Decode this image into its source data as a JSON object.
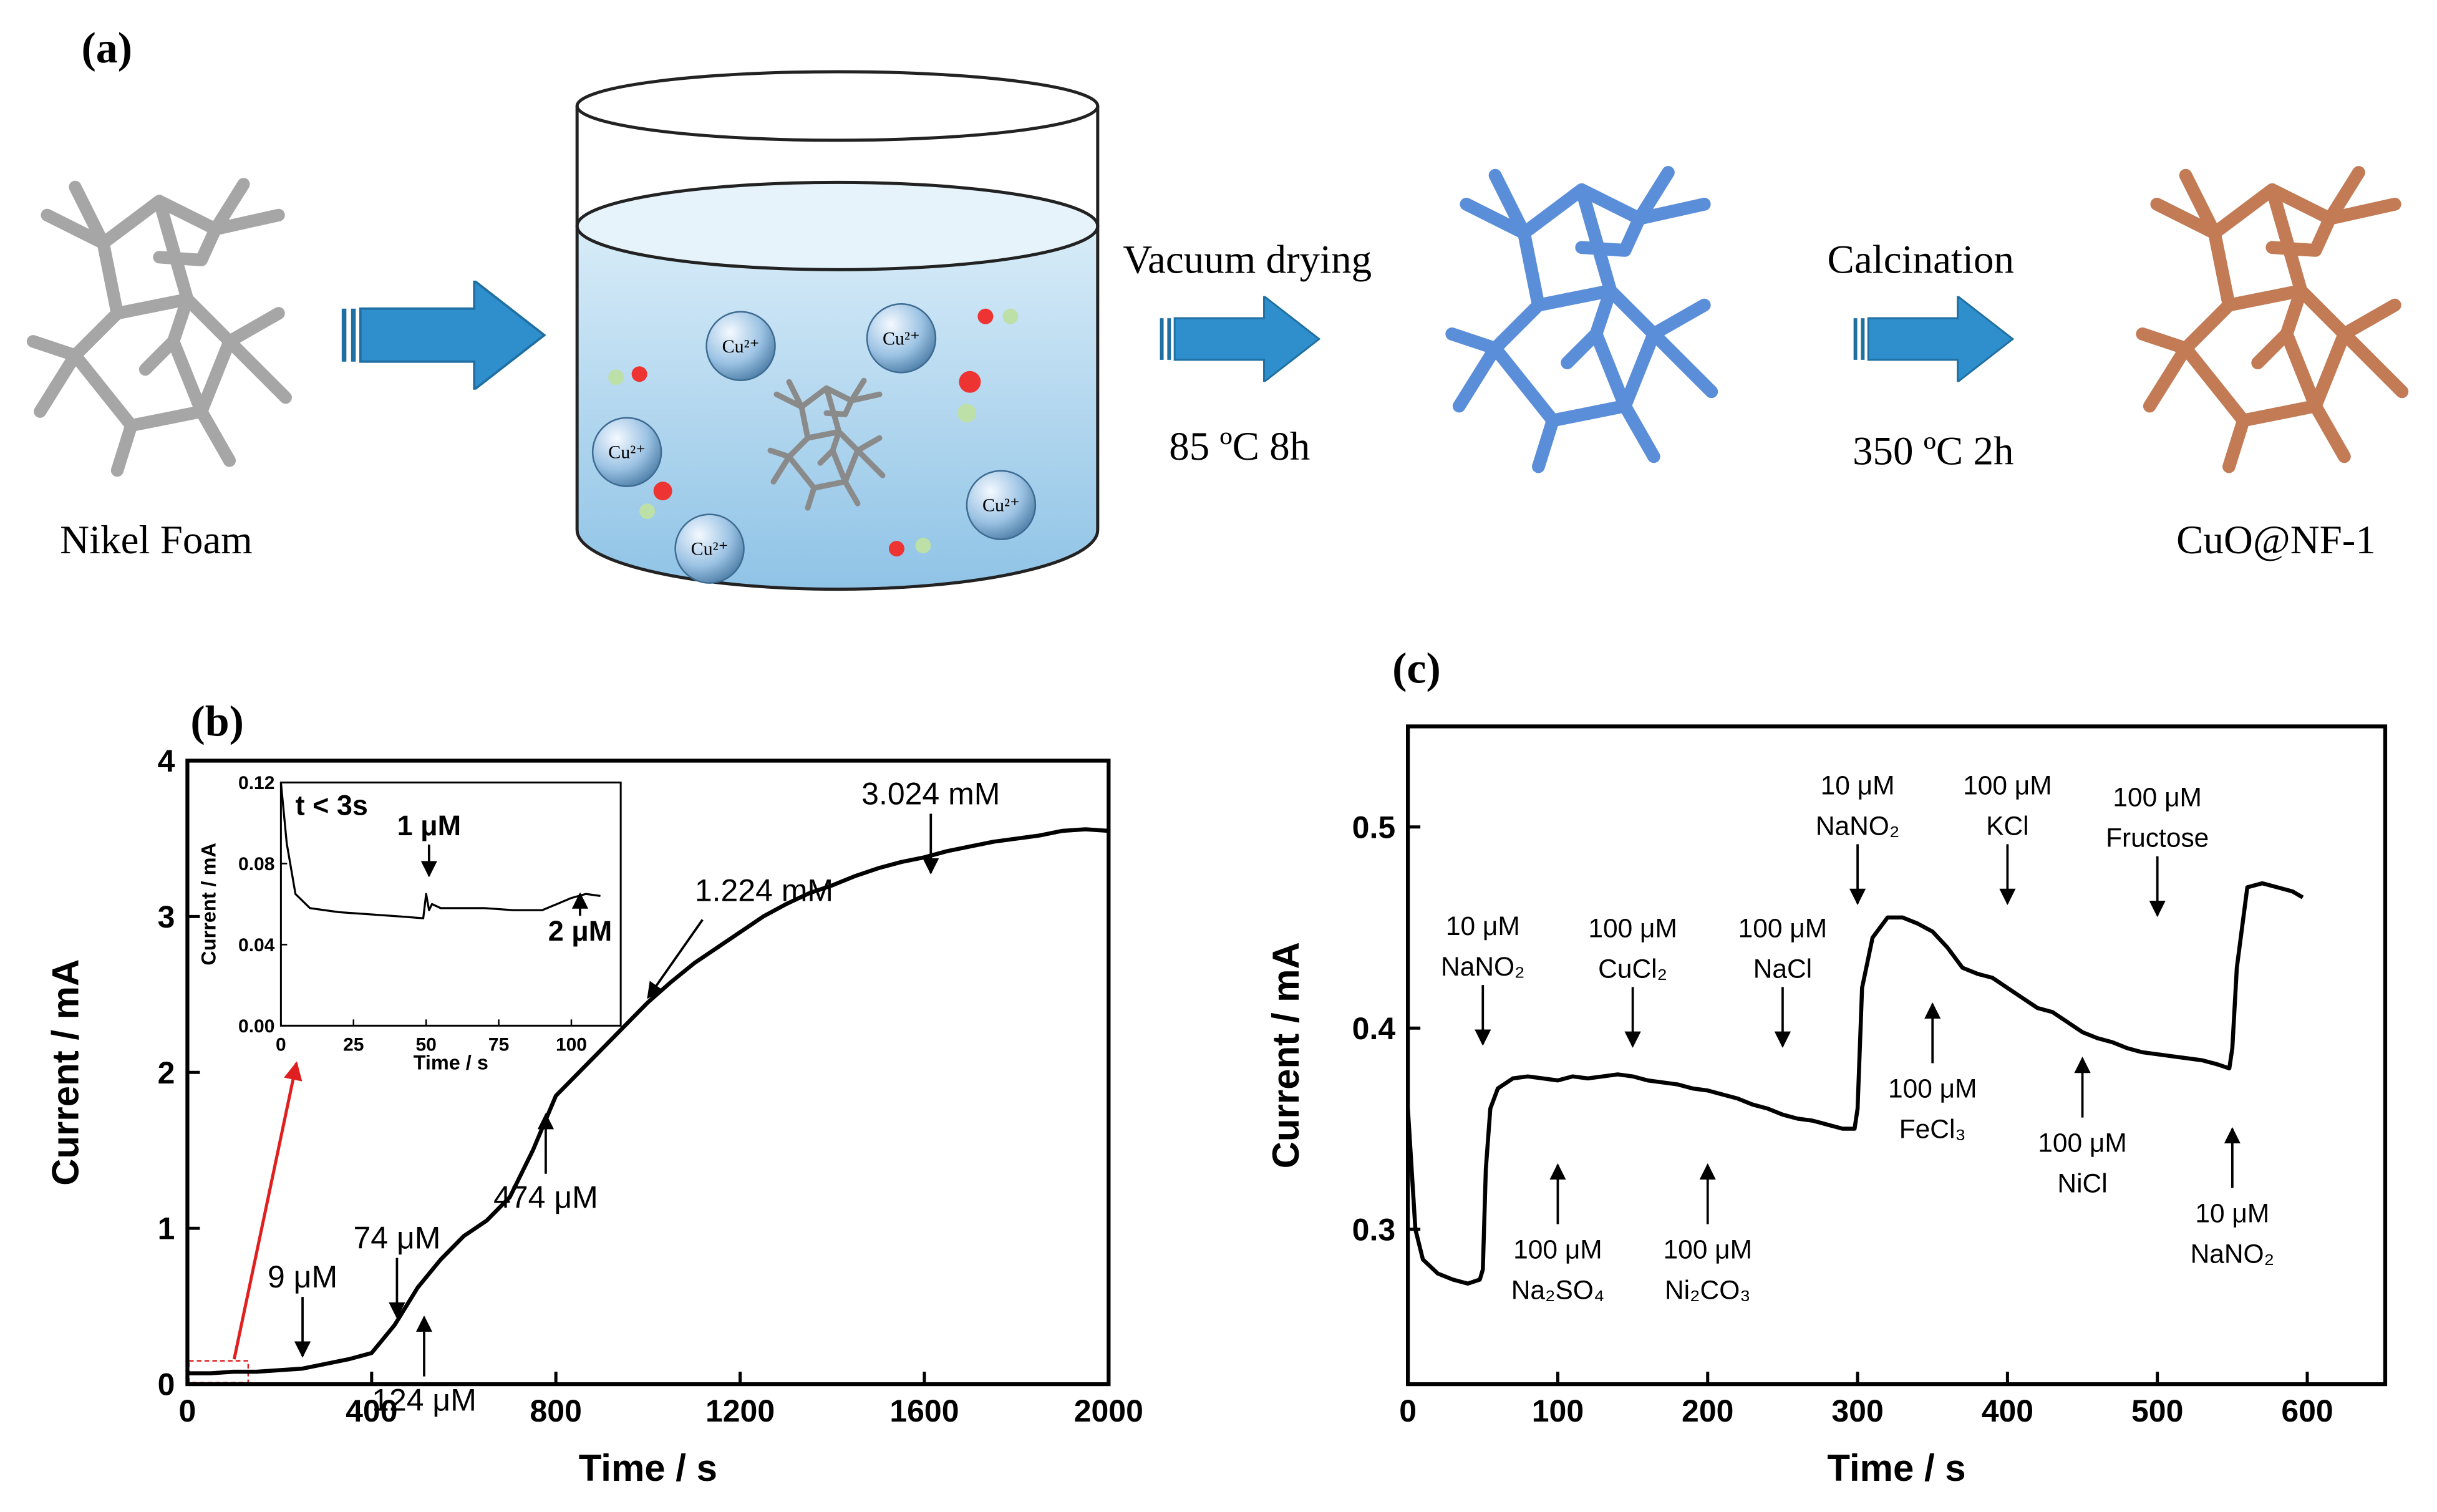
{
  "panel_a": {
    "label": "(a)",
    "nickel_foam": "Nikel Foam",
    "step1": "Vacuum drying",
    "step1_cond": "85 ºC  8h",
    "step2": "Calcination",
    "step2_cond": "350 ºC  2h",
    "product": "CuO@NF-1",
    "ions": [
      "Cu²⁺",
      "Cu²⁺",
      "Cu²⁺",
      "Cu²⁺",
      "Cu²⁺"
    ]
  },
  "chart_data": [
    {
      "type": "line",
      "label": "(b)",
      "xlabel": "Time / s",
      "ylabel": "Current / mA",
      "xlim": [
        0,
        2000
      ],
      "xticks": [
        0,
        400,
        800,
        1200,
        1600,
        2000
      ],
      "ylim": [
        0,
        4
      ],
      "yticks": [
        0,
        1,
        2,
        3,
        4
      ],
      "series": [
        {
          "color": "#000000",
          "x": [
            0,
            50,
            100,
            150,
            200,
            250,
            300,
            350,
            400,
            450,
            500,
            550,
            600,
            650,
            700,
            750,
            800,
            850,
            900,
            950,
            1000,
            1050,
            1100,
            1150,
            1200,
            1250,
            1300,
            1350,
            1400,
            1450,
            1500,
            1550,
            1600,
            1650,
            1700,
            1750,
            1800,
            1850,
            1900,
            1950,
            2000
          ],
          "values": [
            0.07,
            0.07,
            0.08,
            0.08,
            0.09,
            0.1,
            0.13,
            0.16,
            0.2,
            0.38,
            0.62,
            0.8,
            0.95,
            1.05,
            1.2,
            1.5,
            1.85,
            2.0,
            2.15,
            2.3,
            2.45,
            2.58,
            2.7,
            2.8,
            2.9,
            3.0,
            3.08,
            3.15,
            3.2,
            3.26,
            3.31,
            3.35,
            3.38,
            3.42,
            3.45,
            3.48,
            3.5,
            3.52,
            3.55,
            3.56,
            3.55
          ]
        }
      ],
      "annotations": [
        {
          "text": [
            "9 μM"
          ],
          "x": 250,
          "y": 0.18,
          "dir": "down"
        },
        {
          "text": [
            "74 μM"
          ],
          "x": 455,
          "y": 0.43,
          "dir": "down"
        },
        {
          "text": [
            "124 μM"
          ],
          "x": 514,
          "y": 0.43,
          "dir": "up"
        },
        {
          "text": [
            "474 μM"
          ],
          "x": 778,
          "y": 1.73,
          "dir": "up"
        },
        {
          "text": [
            "1.224 mM"
          ],
          "x": 1000,
          "y": 2.48,
          "dir": "diag"
        },
        {
          "text": [
            "3.024 mM"
          ],
          "x": 1614,
          "y": 3.28,
          "dir": "down"
        }
      ]
    },
    {
      "type": "line",
      "xlabel": "Time / s",
      "ylabel": "Current / mA",
      "xlim": [
        0,
        117
      ],
      "xticks": [
        0,
        25,
        50,
        75,
        100
      ],
      "ylim": [
        0,
        0.12
      ],
      "yticks": [
        {
          "value": 0,
          "label": "0.00"
        },
        0.04,
        0.08,
        0.12
      ],
      "series": [
        {
          "color": "#000000",
          "x": [
            0,
            2,
            5,
            10,
            20,
            30,
            40,
            49,
            50,
            51,
            52,
            55,
            60,
            70,
            80,
            90,
            100,
            105,
            110
          ],
          "values": [
            0.12,
            0.09,
            0.065,
            0.058,
            0.056,
            0.055,
            0.054,
            0.053,
            0.065,
            0.057,
            0.06,
            0.058,
            0.058,
            0.058,
            0.057,
            0.057,
            0.063,
            0.065,
            0.064
          ]
        }
      ],
      "annotations": [
        {
          "text": [
            "t < 3s"
          ],
          "x": 5,
          "y": 0.104,
          "dir": "none"
        },
        {
          "text": [
            "1 μM"
          ],
          "x": 51,
          "y": 0.074,
          "dir": "down"
        },
        {
          "text": [
            "2 μM"
          ],
          "x": 103,
          "y": 0.065,
          "dir": "up"
        }
      ]
    },
    {
      "type": "line",
      "label": "(c)",
      "xlabel": "Time / s",
      "ylabel": "Current / mA",
      "xlim": [
        0,
        652
      ],
      "xticks": [
        0,
        100,
        200,
        300,
        400,
        500,
        600
      ],
      "ylim": [
        0.223,
        0.55
      ],
      "yticks": [
        0.3,
        0.4,
        0.5
      ],
      "series": [
        {
          "color": "#000000",
          "x": [
            0,
            5,
            10,
            20,
            30,
            40,
            48,
            50,
            52,
            55,
            60,
            70,
            80,
            90,
            100,
            110,
            120,
            130,
            140,
            150,
            160,
            170,
            180,
            190,
            200,
            210,
            220,
            230,
            240,
            250,
            260,
            270,
            280,
            290,
            298,
            300,
            303,
            310,
            320,
            330,
            340,
            350,
            360,
            370,
            380,
            390,
            400,
            410,
            420,
            430,
            440,
            450,
            460,
            470,
            480,
            490,
            500,
            510,
            520,
            530,
            540,
            548,
            550,
            553,
            560,
            570,
            580,
            590,
            597
          ],
          "values": [
            0.36,
            0.3,
            0.285,
            0.278,
            0.275,
            0.273,
            0.275,
            0.28,
            0.33,
            0.36,
            0.37,
            0.375,
            0.376,
            0.375,
            0.374,
            0.376,
            0.375,
            0.376,
            0.377,
            0.376,
            0.374,
            0.373,
            0.372,
            0.37,
            0.369,
            0.367,
            0.365,
            0.362,
            0.36,
            0.357,
            0.355,
            0.354,
            0.352,
            0.35,
            0.35,
            0.36,
            0.42,
            0.445,
            0.455,
            0.455,
            0.452,
            0.448,
            0.44,
            0.43,
            0.427,
            0.425,
            0.42,
            0.415,
            0.41,
            0.408,
            0.403,
            0.398,
            0.395,
            0.393,
            0.39,
            0.388,
            0.387,
            0.386,
            0.385,
            0.384,
            0.382,
            0.38,
            0.39,
            0.43,
            0.47,
            0.472,
            0.47,
            0.468,
            0.465
          ]
        }
      ],
      "annotations": [
        {
          "text": [
            "10 μM",
            "NaNO₂"
          ],
          "x": 50,
          "y": 0.392,
          "dir": "down"
        },
        {
          "text": [
            "100 μM",
            "CuCl₂"
          ],
          "x": 150,
          "y": 0.391,
          "dir": "down"
        },
        {
          "text": [
            "100 μM",
            "NaCl"
          ],
          "x": 250,
          "y": 0.391,
          "dir": "down"
        },
        {
          "text": [
            "10 μM",
            "NaNO₂"
          ],
          "x": 300,
          "y": 0.462,
          "dir": "down"
        },
        {
          "text": [
            "100 μM",
            "KCl"
          ],
          "x": 400,
          "y": 0.462,
          "dir": "down"
        },
        {
          "text": [
            "100 μM",
            "Fructose"
          ],
          "x": 500,
          "y": 0.456,
          "dir": "down"
        },
        {
          "text": [
            "100 μM",
            "Na₂SO₄"
          ],
          "x": 100,
          "y": 0.332,
          "dir": "up"
        },
        {
          "text": [
            "100 μM",
            "Ni₂CO₃"
          ],
          "x": 200,
          "y": 0.332,
          "dir": "up"
        },
        {
          "text": [
            "100 μM",
            "FeCl₃"
          ],
          "x": 350,
          "y": 0.412,
          "dir": "up"
        },
        {
          "text": [
            "100 μM",
            "NiCl"
          ],
          "x": 450,
          "y": 0.385,
          "dir": "up"
        },
        {
          "text": [
            "10 μM",
            "NaNO₂"
          ],
          "x": 550,
          "y": 0.35,
          "dir": "up"
        }
      ]
    }
  ]
}
